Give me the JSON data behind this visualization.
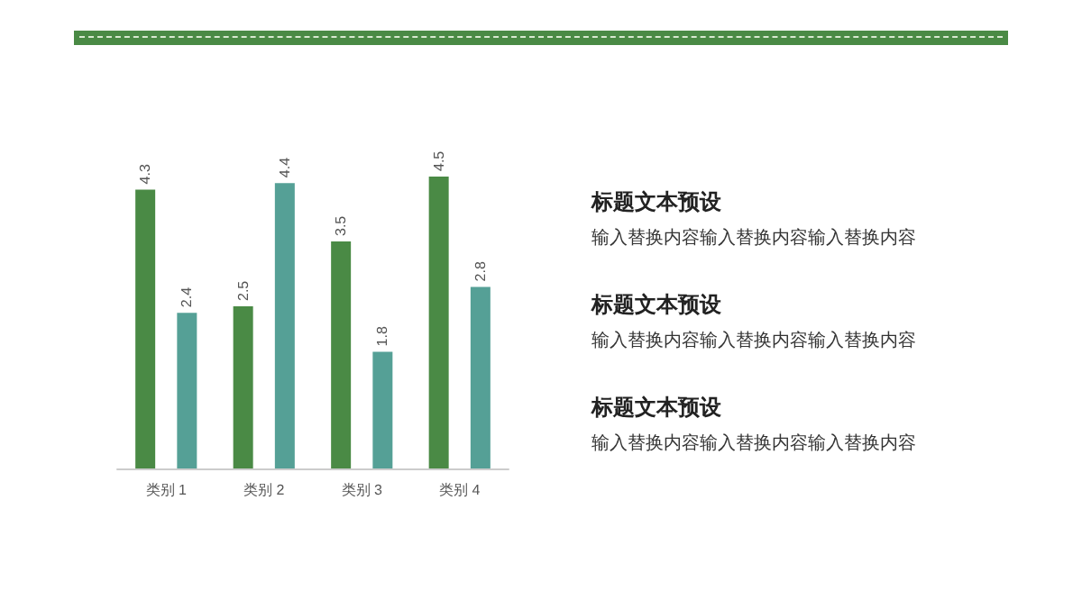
{
  "chart_data": {
    "type": "bar",
    "categories": [
      "类别 1",
      "类别 2",
      "类别 3",
      "类别 4"
    ],
    "series": [
      {
        "color": "#4a8a45",
        "values": [
          4.3,
          2.5,
          3.5,
          4.5
        ]
      },
      {
        "color": "#55a096",
        "values": [
          2.4,
          4.4,
          1.8,
          2.8
        ]
      }
    ],
    "data_labels": true,
    "annotations": [
      "标题文本预设",
      "输入替换内容输入替换内容输入替换内容",
      "标题文本预设",
      "输入替换内容输入替换内容输入替换内容",
      "标题文本预设",
      "输入替换内容输入替换内容输入替换内容"
    ]
  }
}
